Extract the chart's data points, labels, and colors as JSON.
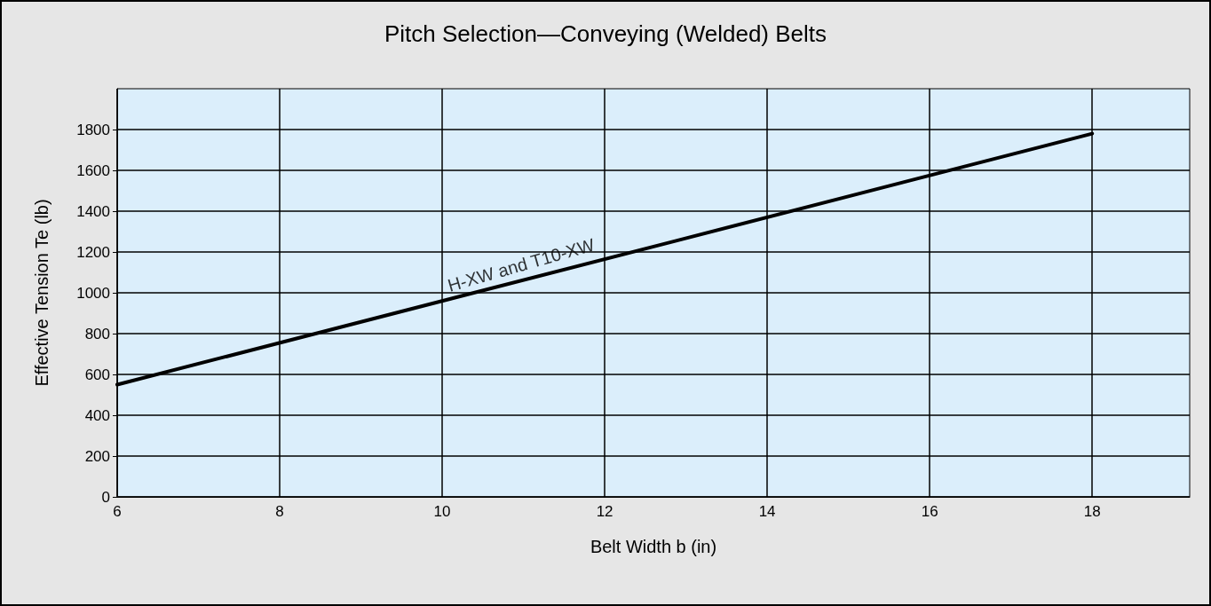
{
  "chart_data": {
    "type": "line",
    "title": "Pitch Selection—Conveying (Welded) Belts",
    "xlabel": "Belt Width b (in)",
    "ylabel": "Effective Tension Te (lb)",
    "x": [
      6,
      18
    ],
    "series": [
      {
        "color": "#000000",
        "values": [
          550,
          1780
        ]
      }
    ],
    "annotations": [
      {
        "text": "H-XW and T10-XW",
        "x": 11,
        "y": 1060
      }
    ],
    "xlim": [
      6,
      19.2
    ],
    "xticks": [
      6,
      8,
      10,
      12,
      14,
      16,
      18
    ],
    "ylim": [
      0,
      2000
    ],
    "yticks": [
      0,
      200,
      400,
      600,
      800,
      1000,
      1200,
      1400,
      1600,
      1800
    ],
    "grid": true,
    "marker": "none",
    "line_style": "solid"
  }
}
